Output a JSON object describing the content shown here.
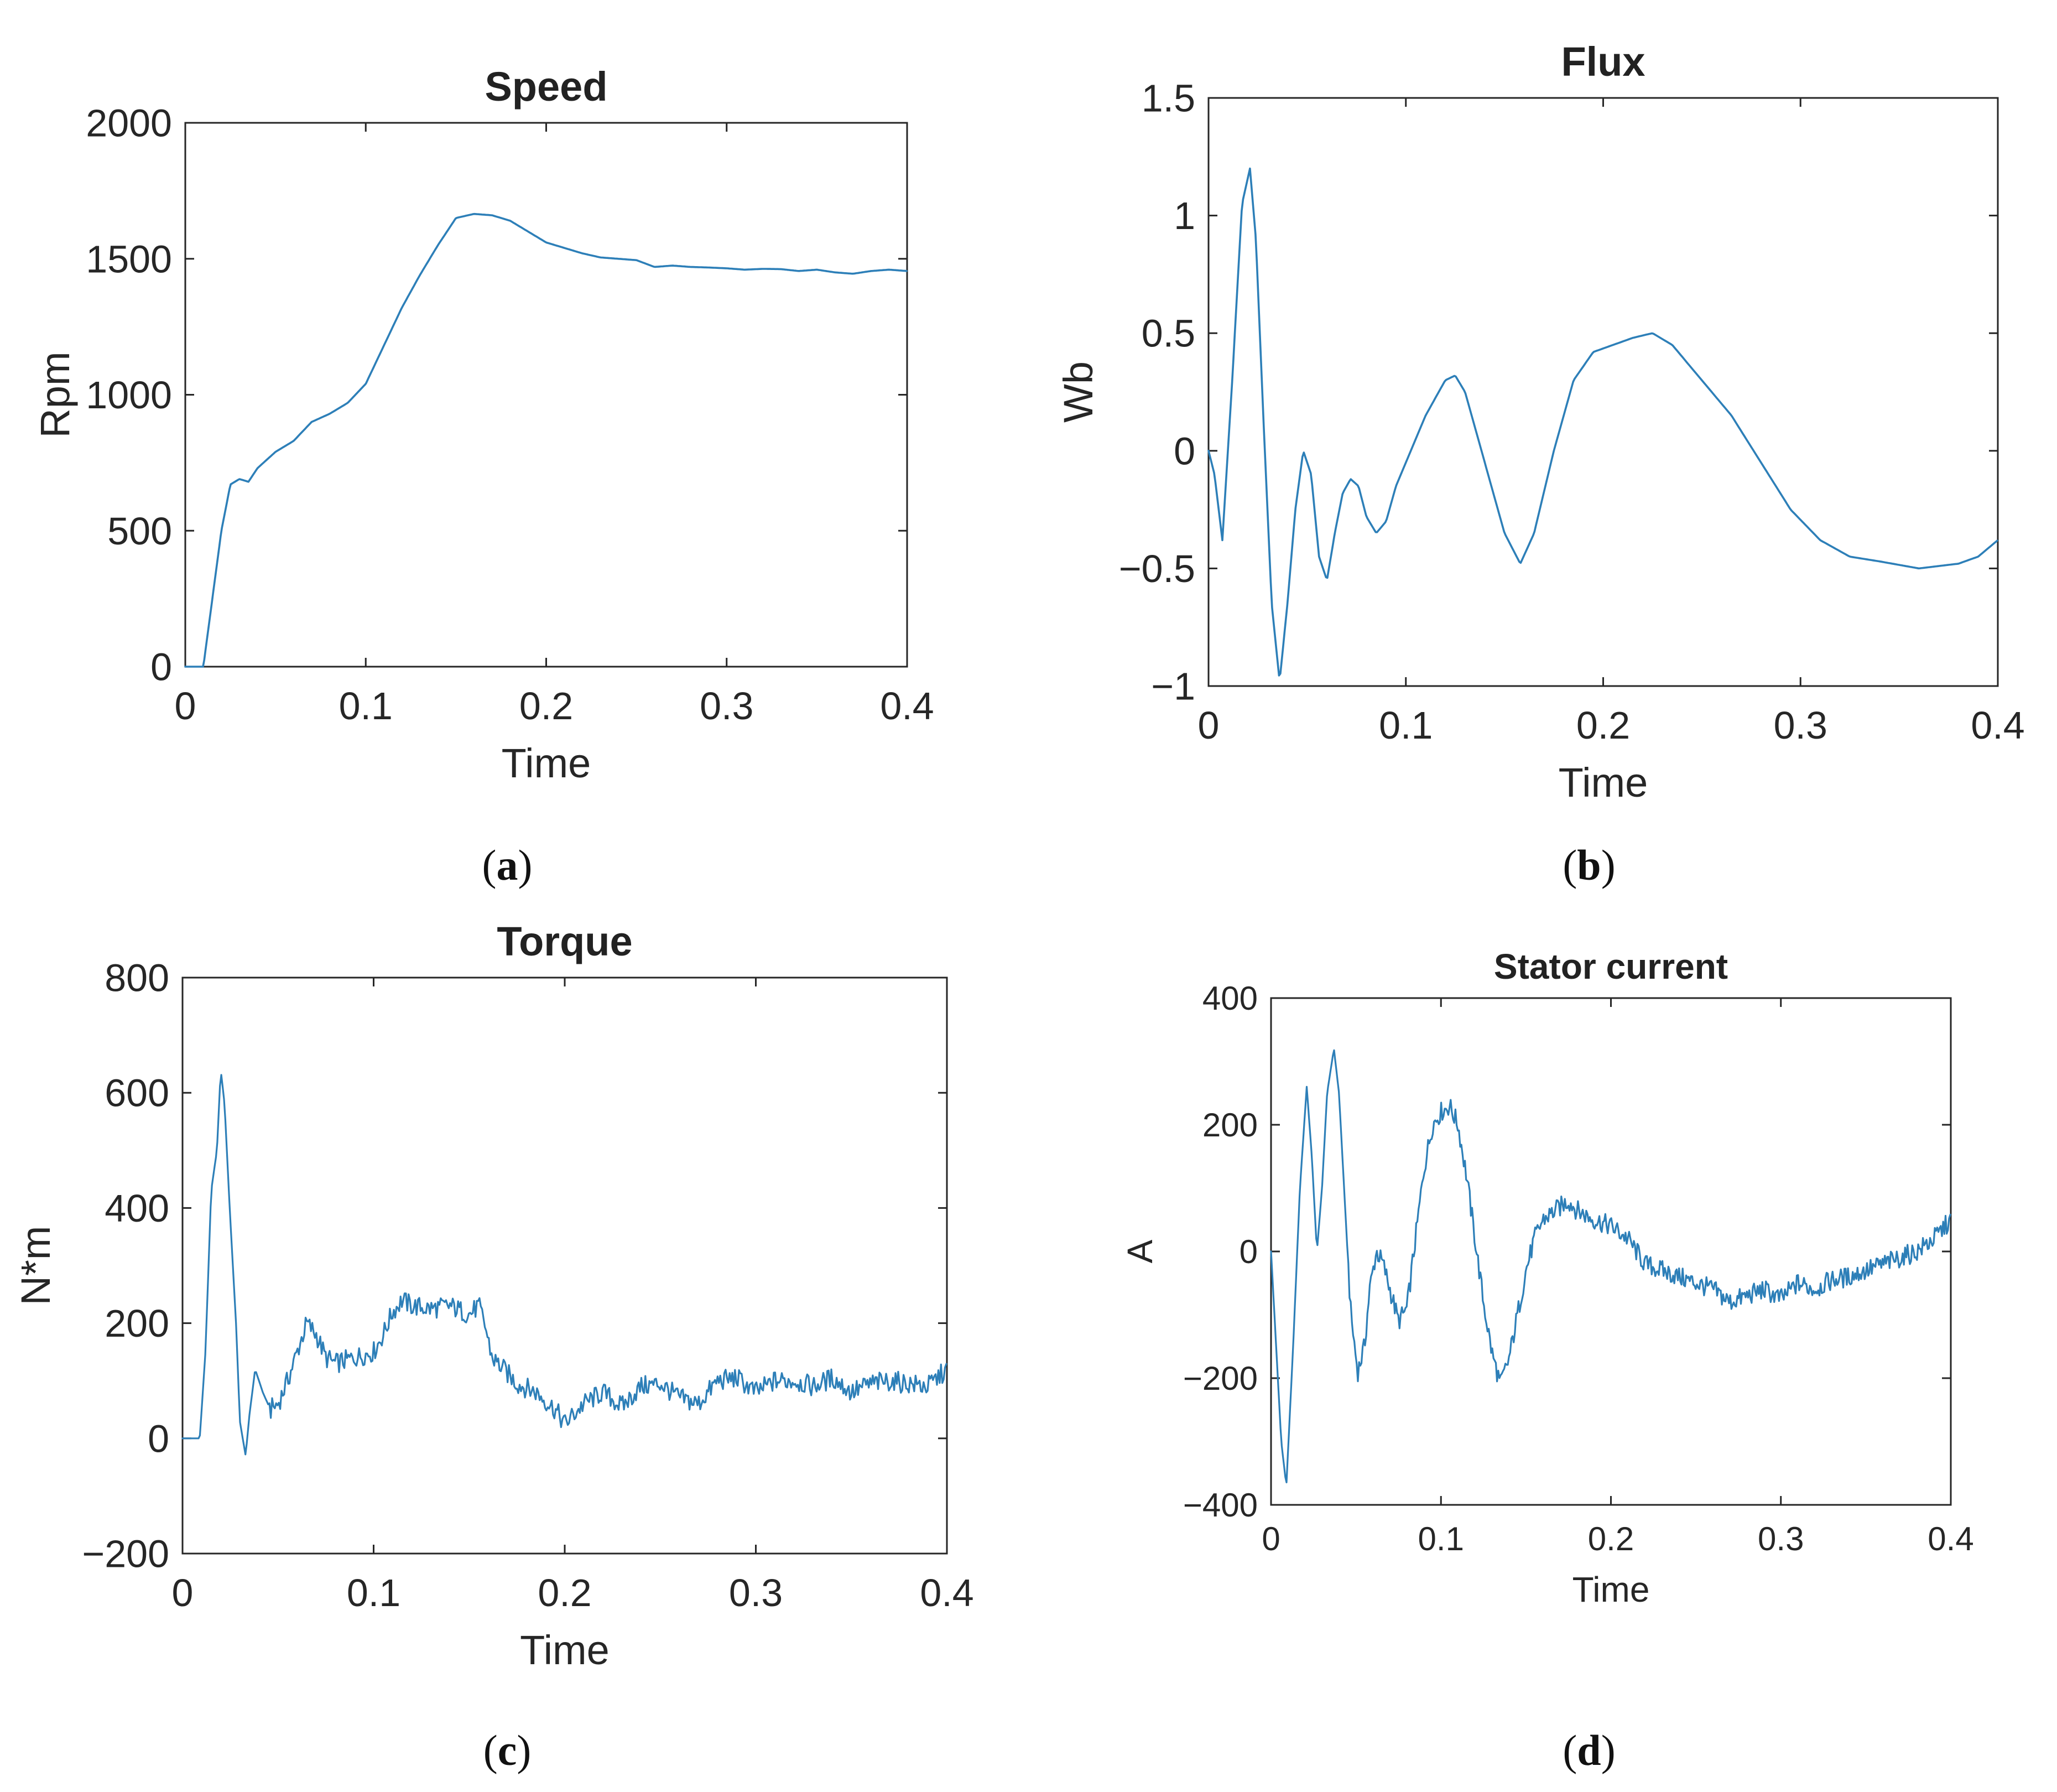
{
  "figure": {
    "series_color": "#2d7fb8",
    "axis_color": "#262626"
  },
  "chart_data": [
    {
      "id": "a",
      "type": "line",
      "title": "Speed",
      "xlabel": "Time",
      "ylabel": "Rpm",
      "xlim": [
        0,
        0.4
      ],
      "ylim": [
        0,
        2000
      ],
      "xticks": [
        0,
        0.1,
        0.2,
        0.3,
        0.4
      ],
      "xtick_labels": [
        "0",
        "0.1",
        "0.2",
        "0.3",
        "0.4"
      ],
      "yticks": [
        0,
        500,
        1000,
        1500,
        2000
      ],
      "ytick_labels": [
        "0",
        "500",
        "1000",
        "1500",
        "2000"
      ],
      "panel_label": {
        "open": "(",
        "letter": "a",
        "close": ")"
      },
      "noise": 0,
      "series": [
        {
          "name": "Speed",
          "x": [
            0,
            0.01,
            0.015,
            0.02,
            0.025,
            0.03,
            0.035,
            0.04,
            0.05,
            0.06,
            0.07,
            0.08,
            0.09,
            0.1,
            0.11,
            0.12,
            0.13,
            0.14,
            0.15,
            0.16,
            0.17,
            0.18,
            0.19,
            0.2,
            0.21,
            0.22,
            0.23,
            0.24,
            0.25,
            0.26,
            0.27,
            0.28,
            0.29,
            0.3,
            0.31,
            0.32,
            0.33,
            0.34,
            0.35,
            0.36,
            0.37,
            0.38,
            0.39,
            0.4
          ],
          "y": [
            0,
            0,
            250,
            500,
            670,
            690,
            680,
            730,
            790,
            830,
            900,
            930,
            970,
            1040,
            1180,
            1320,
            1440,
            1550,
            1650,
            1665,
            1660,
            1640,
            1600,
            1560,
            1540,
            1520,
            1505,
            1500,
            1495,
            1470,
            1475,
            1470,
            1468,
            1465,
            1460,
            1463,
            1462,
            1455,
            1460,
            1450,
            1445,
            1455,
            1460,
            1455
          ]
        }
      ]
    },
    {
      "id": "b",
      "type": "line",
      "title": "Flux",
      "xlabel": "Time",
      "ylabel": "Wb",
      "xlim": [
        0,
        0.4
      ],
      "ylim": [
        -1,
        1.5
      ],
      "xticks": [
        0,
        0.1,
        0.2,
        0.3,
        0.4
      ],
      "xtick_labels": [
        "0",
        "0.1",
        "0.2",
        "0.3",
        "0.4"
      ],
      "yticks": [
        -1,
        -0.5,
        0,
        0.5,
        1,
        1.5
      ],
      "ytick_labels": [
        "−1",
        "−0.5",
        "0",
        "0.5",
        "1",
        "1.5"
      ],
      "panel_label": {
        "open": "(",
        "letter": "b",
        "close": ")"
      },
      "noise": 0,
      "series": [
        {
          "name": "Flux",
          "x": [
            0,
            0.003,
            0.007,
            0.012,
            0.017,
            0.021,
            0.024,
            0.028,
            0.032,
            0.036,
            0.04,
            0.044,
            0.048,
            0.052,
            0.056,
            0.06,
            0.064,
            0.068,
            0.072,
            0.076,
            0.08,
            0.085,
            0.09,
            0.095,
            0.1,
            0.11,
            0.12,
            0.125,
            0.13,
            0.14,
            0.15,
            0.158,
            0.165,
            0.175,
            0.185,
            0.195,
            0.205,
            0.215,
            0.225,
            0.235,
            0.245,
            0.255,
            0.265,
            0.28,
            0.295,
            0.31,
            0.325,
            0.34,
            0.36,
            0.38,
            0.39,
            0.4
          ],
          "y": [
            0,
            -0.1,
            -0.38,
            0.3,
            1.05,
            1.2,
            0.9,
            0.1,
            -0.65,
            -0.98,
            -0.65,
            -0.25,
            0,
            -0.1,
            -0.45,
            -0.55,
            -0.35,
            -0.18,
            -0.12,
            -0.15,
            -0.28,
            -0.35,
            -0.3,
            -0.15,
            -0.05,
            0.15,
            0.3,
            0.32,
            0.25,
            -0.05,
            -0.35,
            -0.48,
            -0.35,
            0,
            0.3,
            0.42,
            0.45,
            0.48,
            0.5,
            0.45,
            0.35,
            0.25,
            0.15,
            -0.05,
            -0.25,
            -0.38,
            -0.45,
            -0.47,
            -0.5,
            -0.48,
            -0.45,
            -0.38
          ]
        }
      ]
    },
    {
      "id": "c",
      "type": "line",
      "title": "Torque",
      "xlabel": "Time",
      "ylabel": "N*m",
      "xlim": [
        0,
        0.4
      ],
      "ylim": [
        -200,
        800
      ],
      "xticks": [
        0,
        0.1,
        0.2,
        0.3,
        0.4
      ],
      "xtick_labels": [
        "0",
        "0.1",
        "0.2",
        "0.3",
        "0.4"
      ],
      "yticks": [
        -200,
        0,
        200,
        400,
        600,
        800
      ],
      "ytick_labels": [
        "−200",
        "0",
        "200",
        "400",
        "600",
        "800"
      ],
      "panel_label": {
        "open": "(",
        "letter": "c",
        "close": ")"
      },
      "noise": 18,
      "series": [
        {
          "name": "Torque",
          "x": [
            0,
            0.009,
            0.012,
            0.015,
            0.018,
            0.02,
            0.022,
            0.025,
            0.028,
            0.03,
            0.033,
            0.035,
            0.038,
            0.042,
            0.046,
            0.05,
            0.055,
            0.06,
            0.065,
            0.07,
            0.075,
            0.08,
            0.09,
            0.1,
            0.105,
            0.11,
            0.115,
            0.12,
            0.13,
            0.14,
            0.15,
            0.155,
            0.158,
            0.162,
            0.168,
            0.175,
            0.185,
            0.195,
            0.2,
            0.21,
            0.22,
            0.23,
            0.24,
            0.25,
            0.26,
            0.27,
            0.28,
            0.29,
            0.3,
            0.31,
            0.32,
            0.33,
            0.34,
            0.35,
            0.36,
            0.37,
            0.38,
            0.39,
            0.4
          ],
          "y": [
            0,
            0,
            150,
            430,
            500,
            640,
            580,
            380,
            200,
            30,
            -30,
            40,
            120,
            80,
            50,
            60,
            100,
            150,
            200,
            180,
            140,
            130,
            140,
            150,
            180,
            220,
            240,
            230,
            225,
            230,
            215,
            230,
            200,
            140,
            120,
            95,
            80,
            50,
            25,
            60,
            80,
            55,
            90,
            95,
            70,
            60,
            100,
            105,
            80,
            100,
            100,
            90,
            105,
            80,
            95,
            100,
            95,
            90,
            120
          ]
        }
      ]
    },
    {
      "id": "d",
      "type": "line",
      "title": "Stator current",
      "xlabel": "Time",
      "ylabel": "A",
      "xlim": [
        0,
        0.4
      ],
      "ylim": [
        -400,
        400
      ],
      "xticks": [
        0,
        0.1,
        0.2,
        0.3,
        0.4
      ],
      "xtick_labels": [
        "0",
        "0.1",
        "0.2",
        "0.3",
        "0.4"
      ],
      "yticks": [
        -400,
        -200,
        0,
        200,
        400
      ],
      "ytick_labels": [
        "−400",
        "−200",
        "0",
        "200",
        "400"
      ],
      "panel_label": {
        "open": "(",
        "letter": "d",
        "close": ")"
      },
      "noise": 16,
      "series": [
        {
          "name": "Stator current",
          "x": [
            0,
            0.003,
            0.006,
            0.009,
            0.013,
            0.017,
            0.021,
            0.024,
            0.027,
            0.03,
            0.033,
            0.037,
            0.04,
            0.043,
            0.047,
            0.051,
            0.055,
            0.058,
            0.062,
            0.066,
            0.07,
            0.075,
            0.08,
            0.085,
            0.09,
            0.095,
            0.1,
            0.105,
            0.11,
            0.115,
            0.12,
            0.125,
            0.13,
            0.135,
            0.14,
            0.145,
            0.15,
            0.155,
            0.16,
            0.165,
            0.17,
            0.175,
            0.18,
            0.19,
            0.2,
            0.21,
            0.22,
            0.23,
            0.24,
            0.25,
            0.26,
            0.27,
            0.28,
            0.29,
            0.3,
            0.31,
            0.32,
            0.33,
            0.34,
            0.35,
            0.36,
            0.37,
            0.38,
            0.39,
            0.4
          ],
          "y": [
            0,
            -150,
            -300,
            -370,
            -150,
            100,
            260,
            150,
            0,
            100,
            250,
            320,
            250,
            100,
            -100,
            -190,
            -150,
            -60,
            0,
            -20,
            -60,
            -110,
            -90,
            20,
            130,
            200,
            220,
            230,
            200,
            120,
            20,
            -80,
            -160,
            -210,
            -170,
            -100,
            -30,
            20,
            50,
            60,
            70,
            80,
            65,
            50,
            40,
            20,
            -20,
            -30,
            -40,
            -50,
            -60,
            -80,
            -70,
            -60,
            -75,
            -50,
            -60,
            -45,
            -40,
            -30,
            -20,
            -10,
            0,
            20,
            50
          ]
        }
      ]
    }
  ]
}
